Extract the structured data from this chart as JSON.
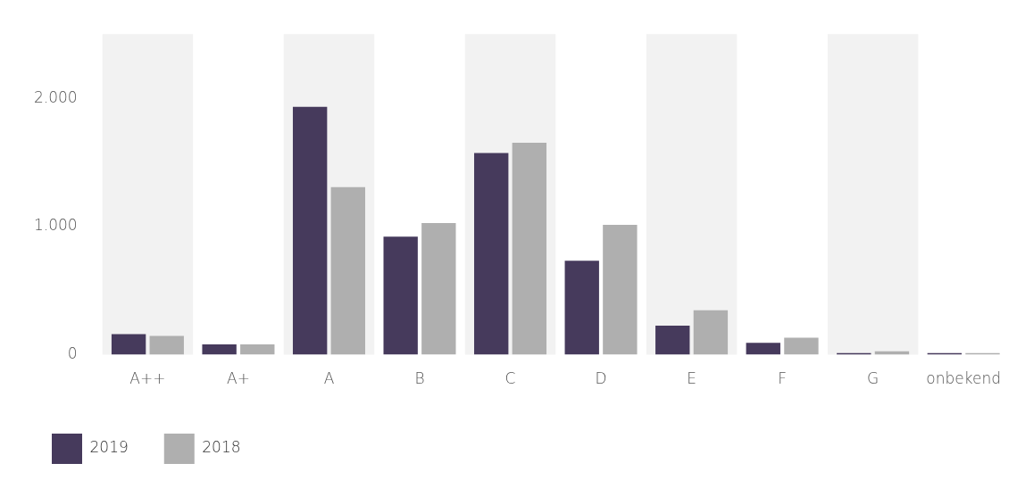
{
  "chart_data": {
    "type": "bar",
    "categories": [
      "A++",
      "A+",
      "A",
      "B",
      "C",
      "D",
      "E",
      "F",
      "G",
      "onbekend"
    ],
    "series": [
      {
        "name": "2019",
        "color": "#463a5c",
        "values": [
          160,
          80,
          1933,
          920,
          1573,
          733,
          227,
          93,
          13,
          13
        ]
      },
      {
        "name": "2018",
        "color": "#afafaf",
        "values": [
          147,
          80,
          1307,
          1027,
          1653,
          1013,
          347,
          133,
          27,
          13
        ]
      }
    ],
    "ylim": [
      0,
      2500
    ],
    "yticks": [
      0,
      {
        "value": 1000,
        "label": "1.000"
      },
      {
        "value": 2000,
        "label": "2.000"
      }
    ],
    "bands": [
      {
        "axis": "x",
        "from": "A++",
        "to": "A++",
        "color": "#f2f2f2"
      },
      {
        "axis": "x",
        "from": "A",
        "to": "A",
        "color": "#f2f2f2"
      },
      {
        "axis": "x",
        "from": "C",
        "to": "C",
        "color": "#f2f2f2"
      },
      {
        "axis": "x",
        "from": "E",
        "to": "E",
        "color": "#f2f2f2"
      },
      {
        "axis": "x",
        "from": "G",
        "to": "G",
        "color": "#f2f2f2"
      }
    ],
    "grid": false,
    "legend": "bottom left"
  }
}
